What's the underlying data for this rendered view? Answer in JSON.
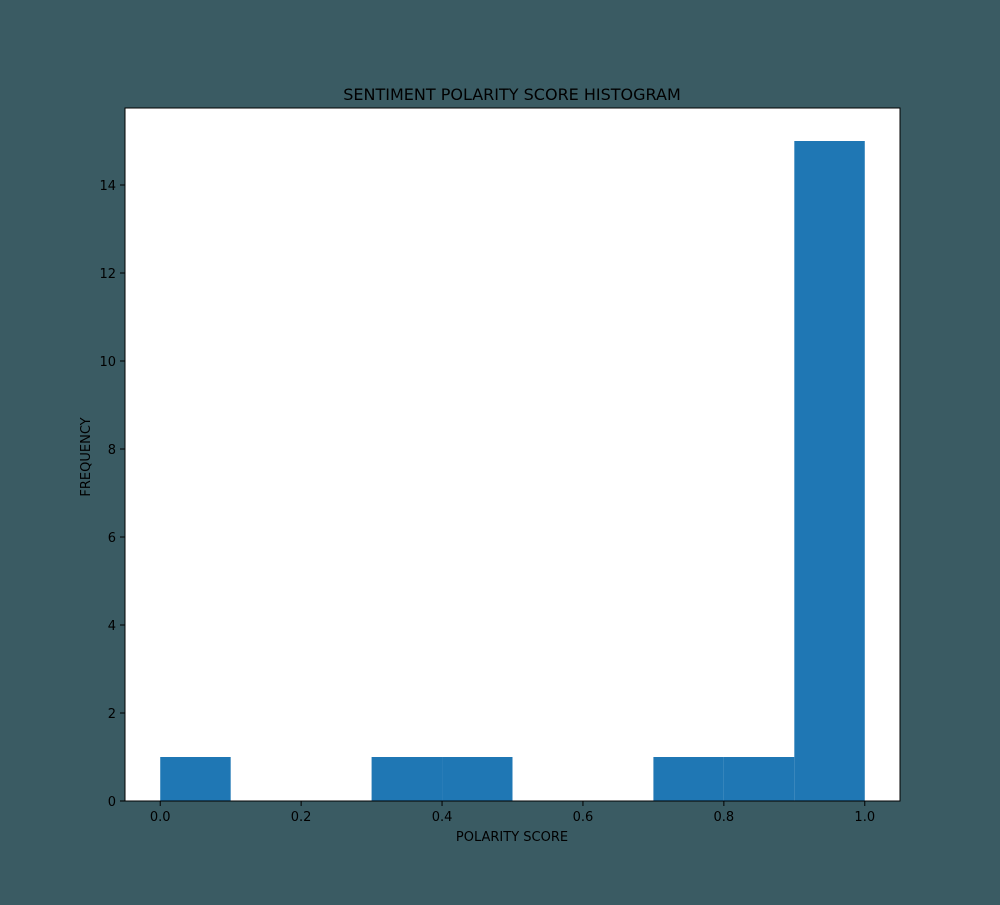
{
  "colors": {
    "background": "#3a5b63",
    "plot_area": "#ffffff",
    "bar": "#1f77b4",
    "axis": "#000000"
  },
  "chart_data": {
    "type": "bar",
    "title": "SENTIMENT POLARITY SCORE HISTOGRAM",
    "xlabel": "POLARITY SCORE",
    "ylabel": "FREQUENCY",
    "xlim": [
      -0.05,
      1.05
    ],
    "ylim": [
      0,
      15.75
    ],
    "grid": false,
    "bins": [
      {
        "start": 0.0,
        "end": 0.1,
        "count": 1
      },
      {
        "start": 0.1,
        "end": 0.2,
        "count": 0
      },
      {
        "start": 0.2,
        "end": 0.3,
        "count": 0
      },
      {
        "start": 0.3,
        "end": 0.4,
        "count": 1
      },
      {
        "start": 0.4,
        "end": 0.5,
        "count": 1
      },
      {
        "start": 0.5,
        "end": 0.6,
        "count": 0
      },
      {
        "start": 0.6,
        "end": 0.7,
        "count": 0
      },
      {
        "start": 0.7,
        "end": 0.8,
        "count": 1
      },
      {
        "start": 0.8,
        "end": 0.9,
        "count": 1
      },
      {
        "start": 0.9,
        "end": 1.0,
        "count": 15
      }
    ],
    "x_ticks": [
      {
        "value": 0.0,
        "label": "0.0"
      },
      {
        "value": 0.2,
        "label": "0.2"
      },
      {
        "value": 0.4,
        "label": "0.4"
      },
      {
        "value": 0.6,
        "label": "0.6"
      },
      {
        "value": 0.8,
        "label": "0.8"
      },
      {
        "value": 1.0,
        "label": "1.0"
      }
    ],
    "y_ticks": [
      {
        "value": 0,
        "label": "0"
      },
      {
        "value": 2,
        "label": "2"
      },
      {
        "value": 4,
        "label": "4"
      },
      {
        "value": 6,
        "label": "6"
      },
      {
        "value": 8,
        "label": "8"
      },
      {
        "value": 10,
        "label": "10"
      },
      {
        "value": 12,
        "label": "12"
      },
      {
        "value": 14,
        "label": "14"
      }
    ]
  }
}
